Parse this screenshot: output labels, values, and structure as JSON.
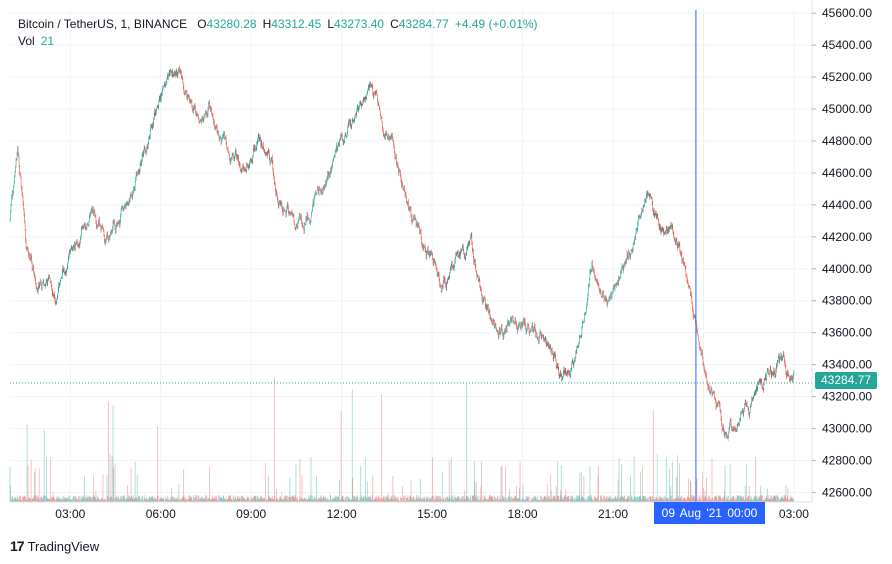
{
  "legend": {
    "symbol": "Bitcoin / TetherUS, 1, BINANCE",
    "open_label": "O",
    "open": "43280.28",
    "high_label": "H",
    "high": "43312.45",
    "low_label": "L",
    "low": "43273.40",
    "close_label": "C",
    "close": "43284.77",
    "change": "+4.49 (+0.01%)",
    "vol_label": "Vol",
    "vol_value": "21"
  },
  "crosshair": {
    "time_label": "09 Aug '21   00:00",
    "time_hour": 23.75
  },
  "last_price_label": "43284.77",
  "branding": {
    "logo_text": "TradingView",
    "logo_mark": "17"
  },
  "colors": {
    "up": "#26a69a",
    "down": "#ef5350",
    "crosshair": "#2962ff",
    "grid": "#f0f3fa"
  },
  "chart_data": {
    "type": "candlestick",
    "symbol": "Bitcoin / TetherUS",
    "interval": "1",
    "exchange": "BINANCE",
    "x_tick_labels": [
      "03:00",
      "06:00",
      "09:00",
      "12:00",
      "15:00",
      "18:00",
      "21:00",
      "00:00",
      "03:00"
    ],
    "x_tick_hours": [
      3,
      6,
      9,
      12,
      15,
      18,
      21,
      24,
      27
    ],
    "x_range_hours": [
      1.0,
      27.6
    ],
    "y_tick_labels": [
      "42600.00",
      "42800.00",
      "43000.00",
      "43200.00",
      "43400.00",
      "43600.00",
      "43800.00",
      "44000.00",
      "44200.00",
      "44400.00",
      "44600.00",
      "44800.00",
      "45000.00",
      "45200.00",
      "45400.00",
      "45600.00"
    ],
    "y_range": [
      42540,
      45620
    ],
    "last_price": 43284.77,
    "price_path": [
      [
        1.0,
        44300
      ],
      [
        1.25,
        44700
      ],
      [
        1.55,
        44150
      ],
      [
        1.9,
        43950
      ],
      [
        2.2,
        43900
      ],
      [
        2.5,
        43850
      ],
      [
        2.75,
        44000
      ],
      [
        3.0,
        44050
      ],
      [
        3.3,
        44200
      ],
      [
        3.6,
        44350
      ],
      [
        3.9,
        44300
      ],
      [
        4.2,
        44200
      ],
      [
        4.5,
        44250
      ],
      [
        4.8,
        44380
      ],
      [
        5.2,
        44600
      ],
      [
        5.6,
        44800
      ],
      [
        5.9,
        45000
      ],
      [
        6.3,
        45200
      ],
      [
        6.6,
        45250
      ],
      [
        6.9,
        45100
      ],
      [
        7.2,
        44950
      ],
      [
        7.6,
        45000
      ],
      [
        8.0,
        44800
      ],
      [
        8.4,
        44700
      ],
      [
        8.7,
        44650
      ],
      [
        9.0,
        44750
      ],
      [
        9.3,
        44800
      ],
      [
        9.6,
        44700
      ],
      [
        10.0,
        44400
      ],
      [
        10.3,
        44350
      ],
      [
        10.7,
        44300
      ],
      [
        11.0,
        44400
      ],
      [
        11.3,
        44500
      ],
      [
        11.6,
        44600
      ],
      [
        12.0,
        44800
      ],
      [
        12.3,
        44900
      ],
      [
        12.7,
        45050
      ],
      [
        13.0,
        45150
      ],
      [
        13.3,
        44950
      ],
      [
        13.7,
        44800
      ],
      [
        14.0,
        44550
      ],
      [
        14.4,
        44300
      ],
      [
        14.7,
        44150
      ],
      [
        15.0,
        44050
      ],
      [
        15.3,
        43900
      ],
      [
        15.6,
        44000
      ],
      [
        16.0,
        44100
      ],
      [
        16.3,
        44150
      ],
      [
        16.6,
        43850
      ],
      [
        17.0,
        43650
      ],
      [
        17.4,
        43600
      ],
      [
        17.7,
        43700
      ],
      [
        18.0,
        43650
      ],
      [
        18.3,
        43600
      ],
      [
        18.7,
        43550
      ],
      [
        19.0,
        43450
      ],
      [
        19.3,
        43350
      ],
      [
        19.5,
        43400
      ],
      [
        19.8,
        43500
      ],
      [
        20.1,
        43800
      ],
      [
        20.3,
        44050
      ],
      [
        20.6,
        43850
      ],
      [
        20.9,
        43800
      ],
      [
        21.2,
        43950
      ],
      [
        21.5,
        44100
      ],
      [
        21.8,
        44250
      ],
      [
        22.1,
        44450
      ],
      [
        22.4,
        44350
      ],
      [
        22.6,
        44250
      ],
      [
        22.9,
        44300
      ],
      [
        23.2,
        44150
      ],
      [
        23.5,
        43850
      ],
      [
        23.8,
        43650
      ],
      [
        24.0,
        43400
      ],
      [
        24.3,
        43250
      ],
      [
        24.6,
        43050
      ],
      [
        24.8,
        43000
      ],
      [
        25.0,
        43050
      ],
      [
        25.3,
        43150
      ],
      [
        25.6,
        43150
      ],
      [
        25.9,
        43300
      ],
      [
        26.2,
        43350
      ],
      [
        26.5,
        43400
      ],
      [
        26.8,
        43350
      ],
      [
        27.0,
        43300
      ]
    ]
  }
}
